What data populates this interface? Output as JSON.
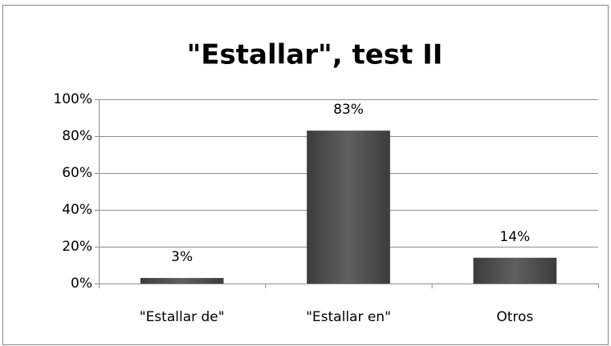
{
  "chart_data": {
    "type": "bar",
    "title": "\"Estallar\", test II",
    "categories": [
      "\"Estallar de\"",
      "\"Estallar en\"",
      "Otros"
    ],
    "values": [
      3,
      83,
      14
    ],
    "value_labels": [
      "3%",
      "83%",
      "14%"
    ],
    "color": "#505050",
    "ylim": [
      0,
      100
    ],
    "yticks": [
      {
        "value": 0,
        "label": "0%"
      },
      {
        "value": 20,
        "label": "20%"
      },
      {
        "value": 40,
        "label": "40%"
      },
      {
        "value": 60,
        "label": "60%"
      },
      {
        "value": 80,
        "label": "80%"
      },
      {
        "value": 100,
        "label": "100%"
      }
    ],
    "grid": true
  }
}
